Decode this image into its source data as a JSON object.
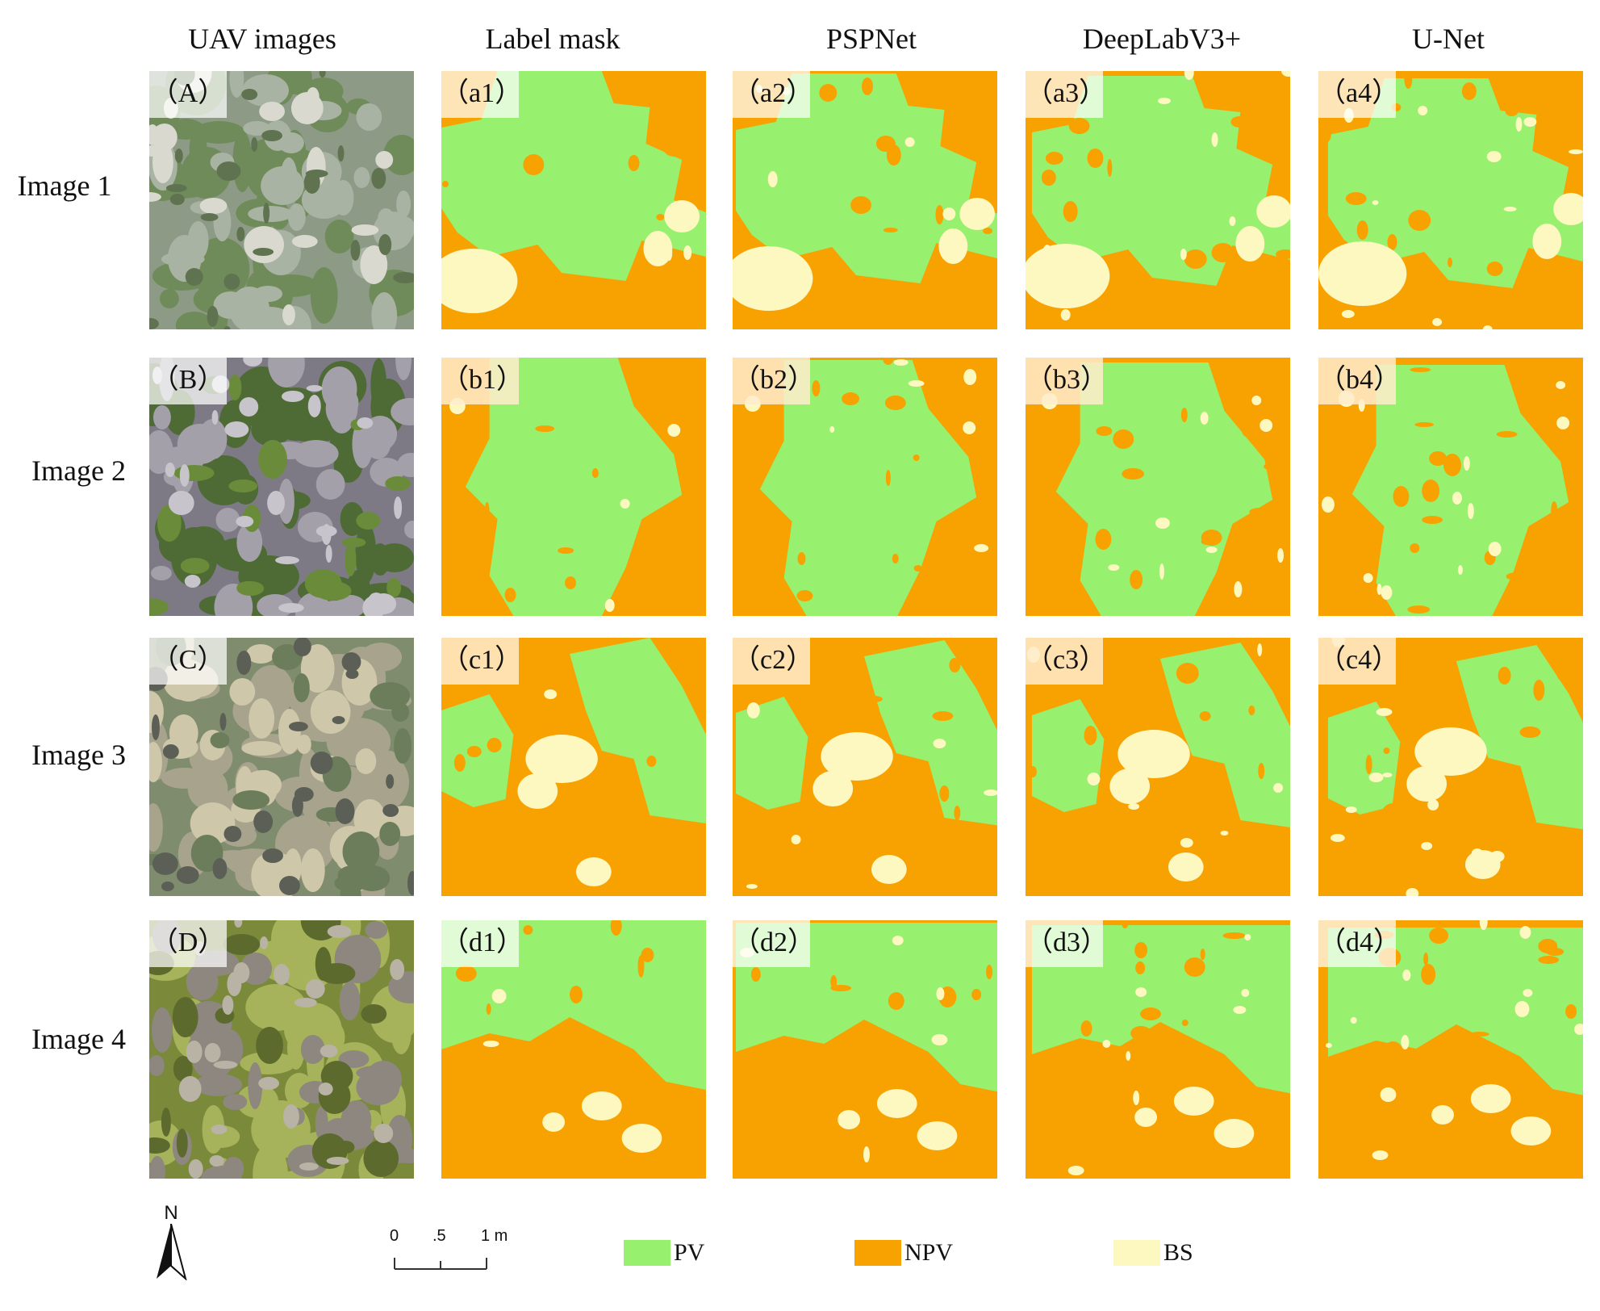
{
  "columns": [
    "UAV images",
    "Label mask",
    "PSPNet",
    "DeepLabV3+",
    "U-Net"
  ],
  "rows": [
    "Image 1",
    "Image 2",
    "Image 3",
    "Image 4"
  ],
  "panel_labels": [
    [
      "（A）",
      "（a1）",
      "（a2）",
      "（a3）",
      "（a4）"
    ],
    [
      "（B）",
      "（b1）",
      "（b2）",
      "（b3）",
      "（b4）"
    ],
    [
      "（C）",
      "（c1）",
      "（c2）",
      "（c3）",
      "（c4）"
    ],
    [
      "（D）",
      "（d1）",
      "（d2）",
      "（d3）",
      "（d4）"
    ]
  ],
  "north_arrow": "N",
  "scale_bar": {
    "ticks": [
      "0",
      ".5",
      "1 m"
    ]
  },
  "legend": [
    {
      "label": "PV",
      "color": "#98f06f"
    },
    {
      "label": "NPV",
      "color": "#f7a200"
    },
    {
      "label": "BS",
      "color": "#fdf7c0"
    }
  ],
  "colors": {
    "pv": "#98f06f",
    "npv": "#f7a200",
    "bs": "#fdf7c0"
  }
}
